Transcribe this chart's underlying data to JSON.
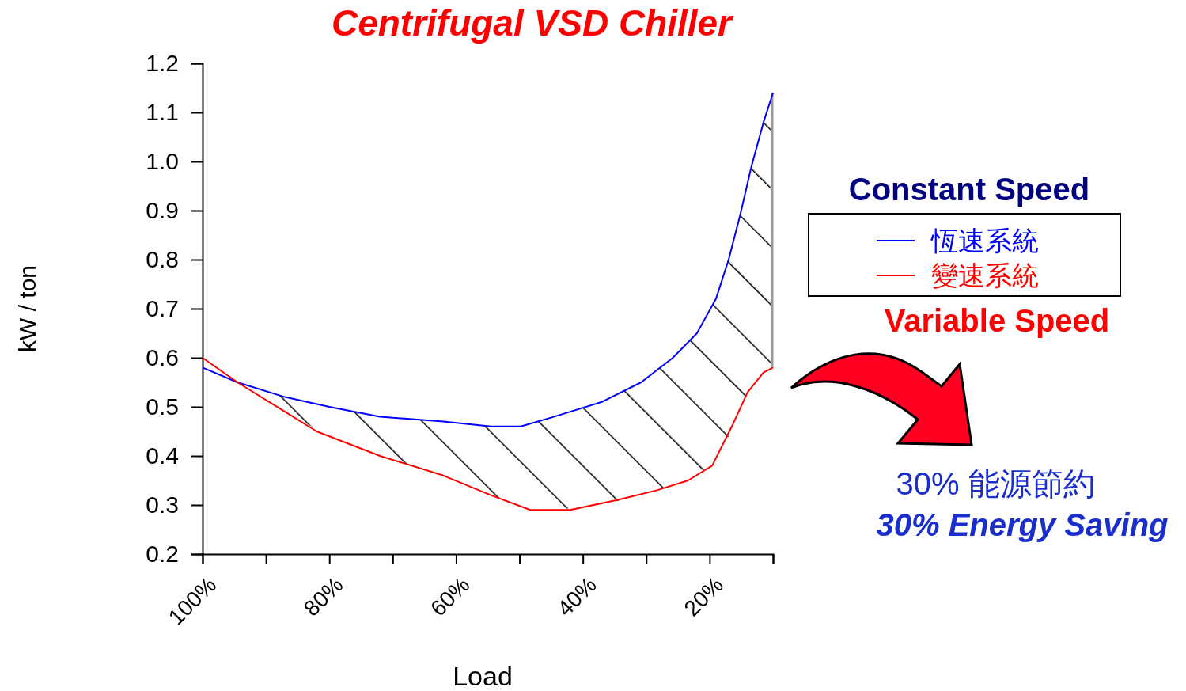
{
  "chart_data": {
    "type": "line",
    "title": "Centrifugal VSD Chiller",
    "xlabel": "Load",
    "ylabel": "kW / ton",
    "xlim": [
      100,
      10
    ],
    "xticks": [
      {
        "value": 100,
        "label": "100%"
      },
      {
        "value": 90,
        "label": null
      },
      {
        "value": 80,
        "label": "80%"
      },
      {
        "value": 70,
        "label": null
      },
      {
        "value": 60,
        "label": "60%"
      },
      {
        "value": 50,
        "label": null
      },
      {
        "value": 40,
        "label": "40%"
      },
      {
        "value": 30,
        "label": null
      },
      {
        "value": 20,
        "label": "20%"
      },
      {
        "value": 10,
        "label": null
      }
    ],
    "ylim": [
      0.2,
      1.2
    ],
    "yticks": [
      0.2,
      0.3,
      0.4,
      0.5,
      0.6,
      0.7,
      0.8,
      0.9,
      {
        "value": 1,
        "label": "1.0"
      },
      1.1,
      1.2
    ],
    "grid": false,
    "legend": "right",
    "marker": "none",
    "line_style": "solid",
    "series": [
      {
        "name": "恆速系統",
        "color": "#0000ff",
        "x": [
          100,
          94.5,
          87,
          80,
          72,
          62,
          54.5,
          49.8,
          44.5,
          37,
          30.8,
          25.8,
          22,
          19,
          17,
          15.2,
          13.4,
          11.5,
          10
        ],
        "values": [
          0.58,
          0.55,
          0.52,
          0.5,
          0.48,
          0.47,
          0.46,
          0.46,
          0.48,
          0.51,
          0.55,
          0.6,
          0.65,
          0.72,
          0.8,
          0.89,
          0.99,
          1.08,
          1.14
        ],
        "lower": [
          0.6,
          0.55,
          0.49,
          0.44,
          0.4,
          0.36,
          0.32,
          0.3,
          0.29,
          0.3,
          0.32,
          0.34,
          0.36,
          0.39,
          0.44,
          0.5,
          0.54,
          0.57,
          0.58
        ],
        "upper": [
          0.58,
          0.55,
          0.52,
          0.5,
          0.48,
          0.47,
          0.46,
          0.46,
          0.48,
          0.51,
          0.55,
          0.6,
          0.65,
          0.72,
          0.8,
          0.89,
          0.99,
          1.08,
          1.14
        ]
      },
      {
        "name": "變速系統",
        "color": "#ff0000",
        "x": [
          100,
          94.5,
          87,
          82,
          72,
          62,
          54.5,
          48.3,
          42,
          34.6,
          28.3,
          23.4,
          19.6,
          16.5,
          14,
          11.5,
          10
        ],
        "values": [
          0.6,
          0.55,
          0.49,
          0.45,
          0.4,
          0.36,
          0.32,
          0.29,
          0.29,
          0.31,
          0.33,
          0.35,
          0.38,
          0.46,
          0.53,
          0.57,
          0.58
        ]
      }
    ],
    "annotations": [
      "Constant Speed",
      "Variable Speed",
      "30% 能源節約",
      "30% Energy Saving"
    ]
  }
}
